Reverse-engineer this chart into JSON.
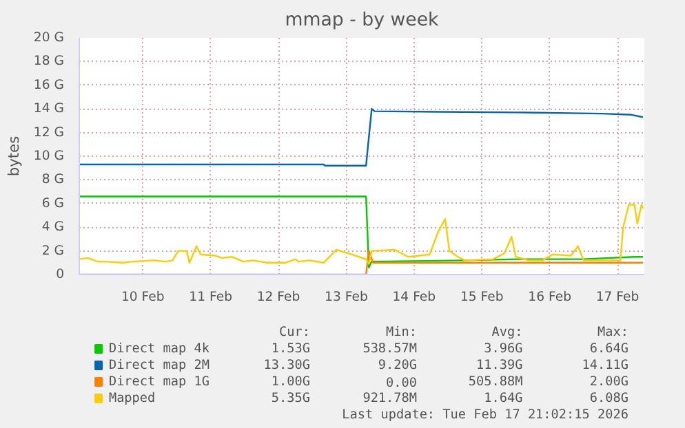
{
  "chart_data": {
    "type": "line",
    "title": "mmap - by week",
    "ylabel": "bytes",
    "xlim": [
      "2026-02-09T13:30",
      "2026-02-17T21:30"
    ],
    "ylim": [
      0,
      20
    ],
    "xticks": [
      {
        "value": "2026-02-10T12:00",
        "label": "10 Feb"
      },
      {
        "value": "2026-02-11T12:00",
        "label": "11 Feb"
      },
      {
        "value": "2026-02-12T12:00",
        "label": "12 Feb"
      },
      {
        "value": "2026-02-13T12:00",
        "label": "13 Feb"
      },
      {
        "value": "2026-02-14T12:00",
        "label": "14 Feb"
      },
      {
        "value": "2026-02-15T12:00",
        "label": "15 Feb"
      },
      {
        "value": "2026-02-16T12:00",
        "label": "16 Feb"
      },
      {
        "value": "2026-02-17T12:00",
        "label": "17 Feb"
      }
    ],
    "yticks": [
      {
        "value": 0,
        "label": "0"
      },
      {
        "value": 2,
        "label": "2 G"
      },
      {
        "value": 4,
        "label": "4 G"
      },
      {
        "value": 6,
        "label": "6 G"
      },
      {
        "value": 8,
        "label": "8 G"
      },
      {
        "value": 10,
        "label": "10 G"
      },
      {
        "value": 12,
        "label": "12 G"
      },
      {
        "value": 14,
        "label": "14 G"
      },
      {
        "value": 16,
        "label": "16 G"
      },
      {
        "value": 18,
        "label": "18 G"
      },
      {
        "value": 20,
        "label": "20 G"
      }
    ],
    "grid": true,
    "legend": "bottom",
    "marker": "none",
    "line_style": "solid",
    "series": [
      {
        "name": "Direct map 4k",
        "color": "#00cc00",
        "x": [
          "2026-02-09T13:30",
          "2026-02-13T19:00",
          "2026-02-13T20:00",
          "2026-02-13T21:00",
          "2026-02-15T06:00",
          "2026-02-16T00:00",
          "2026-02-17T00:00",
          "2026-02-17T18:00",
          "2026-02-17T21:00"
        ],
        "values": [
          6.6,
          6.6,
          0.6,
          1.1,
          1.2,
          1.3,
          1.3,
          1.5,
          1.5
        ]
      },
      {
        "name": "Direct map 2M",
        "color": "#0066b3",
        "x": [
          "2026-02-09T13:30",
          "2026-02-13T04:00",
          "2026-02-13T04:30",
          "2026-02-13T19:00",
          "2026-02-13T21:00",
          "2026-02-13T22:00",
          "2026-02-14T20:30",
          "2026-02-16T00:00",
          "2026-02-17T06:30",
          "2026-02-17T17:00",
          "2026-02-17T21:00"
        ],
        "values": [
          9.3,
          9.3,
          9.2,
          9.2,
          14.0,
          13.8,
          13.75,
          13.7,
          13.6,
          13.5,
          13.3
        ]
      },
      {
        "name": "Direct map 1G",
        "color": "#ff8000",
        "x": [
          "2026-02-09T13:30",
          "2026-02-13T19:00",
          "2026-02-13T20:00",
          "2026-02-13T21:30",
          "2026-02-17T21:00"
        ],
        "values": [
          0,
          0,
          2.0,
          1.0,
          1.0
        ]
      },
      {
        "name": "Mapped",
        "color": "#ffcc00",
        "x": [
          "2026-02-09T13:30",
          "2026-02-09T16:30",
          "2026-02-09T20:00",
          "2026-02-09T22:30",
          "2026-02-10T05:00",
          "2026-02-10T08:30",
          "2026-02-10T16:00",
          "2026-02-10T20:00",
          "2026-02-10T22:30",
          "2026-02-11T00:30",
          "2026-02-11T03:30",
          "2026-02-11T04:30",
          "2026-02-11T07:00",
          "2026-02-11T08:30",
          "2026-02-11T13:30",
          "2026-02-11T16:00",
          "2026-02-11T19:30",
          "2026-02-11T23:30",
          "2026-02-12T03:00",
          "2026-02-12T08:00",
          "2026-02-12T14:30",
          "2026-02-12T18:00",
          "2026-02-12T19:00",
          "2026-02-12T23:00",
          "2026-02-13T04:00",
          "2026-02-13T08:30",
          "2026-02-13T14:00",
          "2026-02-13T19:00",
          "2026-02-13T20:00",
          "2026-02-13T21:00",
          "2026-02-14T05:00",
          "2026-02-14T10:00",
          "2026-02-14T17:30",
          "2026-02-14T20:30",
          "2026-02-14T23:00",
          "2026-02-15T00:30",
          "2026-02-15T03:30",
          "2026-02-15T06:00",
          "2026-02-15T16:00",
          "2026-02-15T20:00",
          "2026-02-15T22:30",
          "2026-02-16T00:00",
          "2026-02-16T04:30",
          "2026-02-16T09:30",
          "2026-02-16T13:00",
          "2026-02-16T19:30",
          "2026-02-16T22:00",
          "2026-02-17T00:00",
          "2026-02-17T13:00",
          "2026-02-17T14:00",
          "2026-02-17T16:00",
          "2026-02-17T18:00",
          "2026-02-17T19:00",
          "2026-02-17T20:30",
          "2026-02-17T21:00"
        ],
        "values": [
          1.3,
          1.4,
          1.1,
          1.1,
          1.0,
          1.1,
          1.2,
          1.1,
          1.2,
          2.0,
          2.0,
          1.0,
          2.4,
          1.7,
          1.6,
          1.4,
          1.5,
          1.1,
          1.2,
          1.0,
          1.0,
          1.3,
          1.1,
          1.2,
          1.0,
          2.1,
          1.7,
          1.3,
          0.9,
          2.0,
          2.1,
          1.5,
          1.7,
          3.6,
          4.7,
          2.0,
          1.5,
          1.2,
          1.3,
          1.8,
          3.2,
          1.5,
          1.2,
          1.2,
          1.7,
          1.6,
          2.4,
          1.2,
          1.2,
          4.0,
          5.9,
          5.9,
          4.3,
          5.9,
          5.6
        ]
      }
    ],
    "annotations": [
      "Cur:",
      "Min:",
      "Avg:",
      "Max:",
      "1.53G",
      "538.57M",
      "3.96G",
      "6.64G",
      "13.30G",
      "9.20G",
      "11.39G",
      "14.11G",
      "1.00G",
      "0.00",
      "505.88M",
      "2.00G",
      "5.35G",
      "921.78M",
      "1.64G",
      "6.08G",
      "Last update: Tue Feb 17 21:02:15 2026"
    ]
  }
}
